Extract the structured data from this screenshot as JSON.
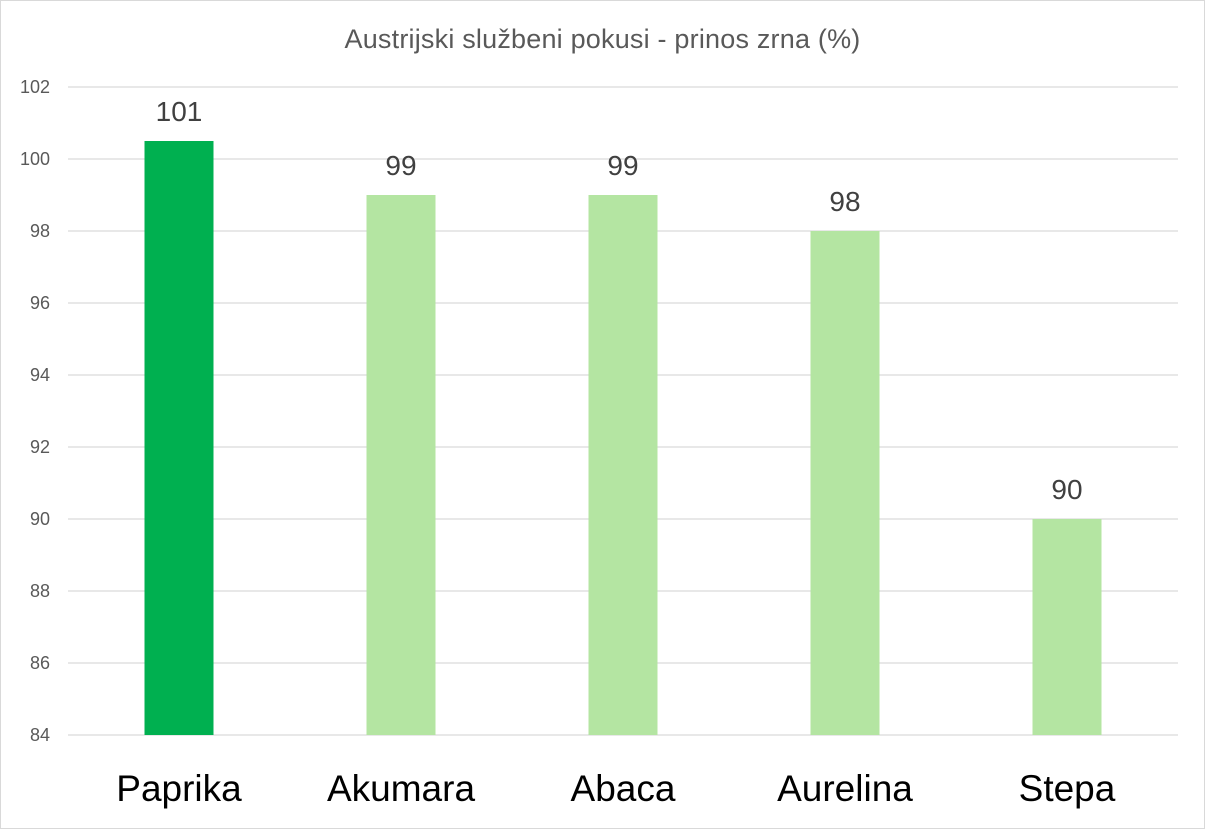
{
  "chart_data": {
    "type": "bar",
    "title": "Austrijski službeni pokusi - prinos zrna (%)",
    "xlabel": "",
    "ylabel": "",
    "categories": [
      "Paprika",
      "Akumara",
      "Abaca",
      "Aurelina",
      "Stepa"
    ],
    "values": [
      100.5,
      99,
      99,
      98,
      90
    ],
    "data_labels": [
      "101",
      "99",
      "99",
      "98",
      "90"
    ],
    "ylim": [
      84,
      102
    ],
    "yticks": [
      84,
      86,
      88,
      90,
      92,
      94,
      96,
      98,
      100,
      102
    ],
    "grid": true,
    "legend": "none",
    "bar_colors": [
      "#00b050",
      "#b4e5a2",
      "#b4e5a2",
      "#b4e5a2",
      "#b4e5a2"
    ]
  }
}
